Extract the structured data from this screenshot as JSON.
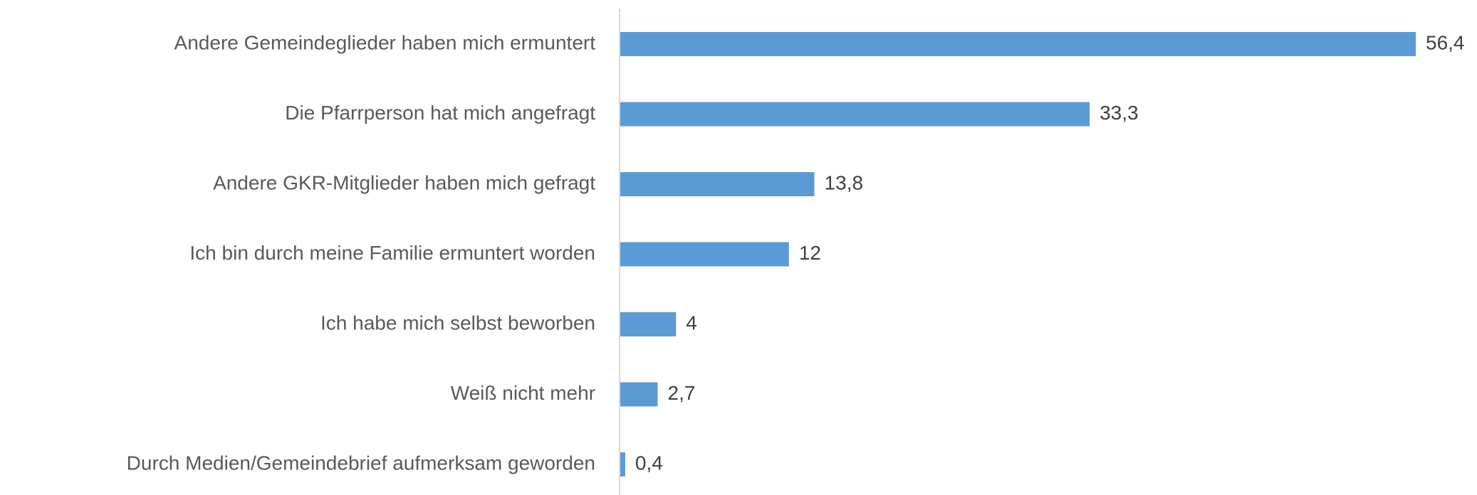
{
  "chart_data": {
    "type": "bar",
    "orientation": "horizontal",
    "color": "#5b9bd5",
    "categories": [
      "Andere Gemeindeglieder haben mich ermuntert",
      "Die Pfarrperson hat mich angefragt",
      "Andere GKR-Mitglieder haben mich gefragt",
      "Ich bin durch meine Familie ermuntert worden",
      "Ich habe mich selbst beworben",
      "Weiß nicht mehr",
      "Durch Medien/Gemeindebrief aufmerksam geworden"
    ],
    "values": [
      56.4,
      33.3,
      13.8,
      12,
      4,
      2.7,
      0.4
    ],
    "value_labels": [
      "56,4",
      "33,3",
      "13,8",
      "12",
      "4",
      "2,7",
      "0,4"
    ]
  }
}
